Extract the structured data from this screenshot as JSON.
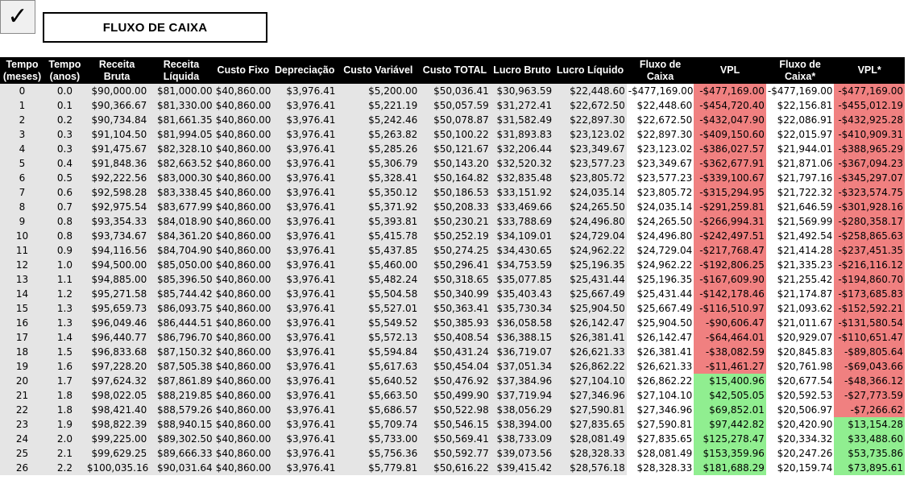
{
  "header": {
    "check_symbol": "✓",
    "title": "FLUXO DE CAIXA"
  },
  "colors": {
    "header_bg": "#000000",
    "body_bg": "#e5e5e5",
    "negative": "#f08080",
    "positive": "#90ee90"
  },
  "table": {
    "columns": [
      "Tempo (meses)",
      "Tempo (anos)",
      "Receita Bruta",
      "Receita Líquida",
      "Custo Fixo",
      "Depreciação",
      "Custo Variável",
      "Custo TOTAL",
      "Lucro Bruto",
      "Lucro Líquido",
      "Fluxo de Caixa",
      "VPL",
      "Fluxo de Caixa*",
      "VPL*"
    ],
    "rows": [
      [
        "0",
        "0.0",
        "$90,000.00",
        "$81,000.00",
        "$40,860.00",
        "$3,976.41",
        "$5,200.00",
        "$50,036.41",
        "$30,963.59",
        "$22,448.60",
        "-$477,169.00",
        "-$477,169.00",
        "-$477,169.00",
        "-$477,169.00"
      ],
      [
        "1",
        "0.1",
        "$90,366.67",
        "$81,330.00",
        "$40,860.00",
        "$3,976.41",
        "$5,221.19",
        "$50,057.59",
        "$31,272.41",
        "$22,672.50",
        "$22,448.60",
        "-$454,720.40",
        "$22,156.81",
        "-$455,012.19"
      ],
      [
        "2",
        "0.2",
        "$90,734.84",
        "$81,661.35",
        "$40,860.00",
        "$3,976.41",
        "$5,242.46",
        "$50,078.87",
        "$31,582.49",
        "$22,897.30",
        "$22,672.50",
        "-$432,047.90",
        "$22,086.91",
        "-$432,925.28"
      ],
      [
        "3",
        "0.3",
        "$91,104.50",
        "$81,994.05",
        "$40,860.00",
        "$3,976.41",
        "$5,263.82",
        "$50,100.22",
        "$31,893.83",
        "$23,123.02",
        "$22,897.30",
        "-$409,150.60",
        "$22,015.97",
        "-$410,909.31"
      ],
      [
        "4",
        "0.3",
        "$91,475.67",
        "$82,328.10",
        "$40,860.00",
        "$3,976.41",
        "$5,285.26",
        "$50,121.67",
        "$32,206.44",
        "$23,349.67",
        "$23,123.02",
        "-$386,027.57",
        "$21,944.01",
        "-$388,965.29"
      ],
      [
        "5",
        "0.4",
        "$91,848.36",
        "$82,663.52",
        "$40,860.00",
        "$3,976.41",
        "$5,306.79",
        "$50,143.20",
        "$32,520.32",
        "$23,577.23",
        "$23,349.67",
        "-$362,677.91",
        "$21,871.06",
        "-$367,094.23"
      ],
      [
        "6",
        "0.5",
        "$92,222.56",
        "$83,000.30",
        "$40,860.00",
        "$3,976.41",
        "$5,328.41",
        "$50,164.82",
        "$32,835.48",
        "$23,805.72",
        "$23,577.23",
        "-$339,100.67",
        "$21,797.16",
        "-$345,297.07"
      ],
      [
        "7",
        "0.6",
        "$92,598.28",
        "$83,338.45",
        "$40,860.00",
        "$3,976.41",
        "$5,350.12",
        "$50,186.53",
        "$33,151.92",
        "$24,035.14",
        "$23,805.72",
        "-$315,294.95",
        "$21,722.32",
        "-$323,574.75"
      ],
      [
        "8",
        "0.7",
        "$92,975.54",
        "$83,677.99",
        "$40,860.00",
        "$3,976.41",
        "$5,371.92",
        "$50,208.33",
        "$33,469.66",
        "$24,265.50",
        "$24,035.14",
        "-$291,259.81",
        "$21,646.59",
        "-$301,928.16"
      ],
      [
        "9",
        "0.8",
        "$93,354.33",
        "$84,018.90",
        "$40,860.00",
        "$3,976.41",
        "$5,393.81",
        "$50,230.21",
        "$33,788.69",
        "$24,496.80",
        "$24,265.50",
        "-$266,994.31",
        "$21,569.99",
        "-$280,358.17"
      ],
      [
        "10",
        "0.8",
        "$93,734.67",
        "$84,361.20",
        "$40,860.00",
        "$3,976.41",
        "$5,415.78",
        "$50,252.19",
        "$34,109.01",
        "$24,729.04",
        "$24,496.80",
        "-$242,497.51",
        "$21,492.54",
        "-$258,865.63"
      ],
      [
        "11",
        "0.9",
        "$94,116.56",
        "$84,704.90",
        "$40,860.00",
        "$3,976.41",
        "$5,437.85",
        "$50,274.25",
        "$34,430.65",
        "$24,962.22",
        "$24,729.04",
        "-$217,768.47",
        "$21,414.28",
        "-$237,451.35"
      ],
      [
        "12",
        "1.0",
        "$94,500.00",
        "$85,050.00",
        "$40,860.00",
        "$3,976.41",
        "$5,460.00",
        "$50,296.41",
        "$34,753.59",
        "$25,196.35",
        "$24,962.22",
        "-$192,806.25",
        "$21,335.23",
        "-$216,116.12"
      ],
      [
        "13",
        "1.1",
        "$94,885.00",
        "$85,396.50",
        "$40,860.00",
        "$3,976.41",
        "$5,482.24",
        "$50,318.65",
        "$35,077.85",
        "$25,431.44",
        "$25,196.35",
        "-$167,609.90",
        "$21,255.42",
        "-$194,860.70"
      ],
      [
        "14",
        "1.2",
        "$95,271.58",
        "$85,744.42",
        "$40,860.00",
        "$3,976.41",
        "$5,504.58",
        "$50,340.99",
        "$35,403.43",
        "$25,667.49",
        "$25,431.44",
        "-$142,178.46",
        "$21,174.87",
        "-$173,685.83"
      ],
      [
        "15",
        "1.3",
        "$95,659.73",
        "$86,093.75",
        "$40,860.00",
        "$3,976.41",
        "$5,527.01",
        "$50,363.41",
        "$35,730.34",
        "$25,904.50",
        "$25,667.49",
        "-$116,510.97",
        "$21,093.62",
        "-$152,592.21"
      ],
      [
        "16",
        "1.3",
        "$96,049.46",
        "$86,444.51",
        "$40,860.00",
        "$3,976.41",
        "$5,549.52",
        "$50,385.93",
        "$36,058.58",
        "$26,142.47",
        "$25,904.50",
        "-$90,606.47",
        "$21,011.67",
        "-$131,580.54"
      ],
      [
        "17",
        "1.4",
        "$96,440.77",
        "$86,796.70",
        "$40,860.00",
        "$3,976.41",
        "$5,572.13",
        "$50,408.54",
        "$36,388.15",
        "$26,381.41",
        "$26,142.47",
        "-$64,464.01",
        "$20,929.07",
        "-$110,651.47"
      ],
      [
        "18",
        "1.5",
        "$96,833.68",
        "$87,150.32",
        "$40,860.00",
        "$3,976.41",
        "$5,594.84",
        "$50,431.24",
        "$36,719.07",
        "$26,621.33",
        "$26,381.41",
        "-$38,082.59",
        "$20,845.83",
        "-$89,805.64"
      ],
      [
        "19",
        "1.6",
        "$97,228.20",
        "$87,505.38",
        "$40,860.00",
        "$3,976.41",
        "$5,617.63",
        "$50,454.04",
        "$37,051.34",
        "$26,862.22",
        "$26,621.33",
        "-$11,461.27",
        "$20,761.98",
        "-$69,043.66"
      ],
      [
        "20",
        "1.7",
        "$97,624.32",
        "$87,861.89",
        "$40,860.00",
        "$3,976.41",
        "$5,640.52",
        "$50,476.92",
        "$37,384.96",
        "$27,104.10",
        "$26,862.22",
        "$15,400.96",
        "$20,677.54",
        "-$48,366.12"
      ],
      [
        "21",
        "1.8",
        "$98,022.05",
        "$88,219.85",
        "$40,860.00",
        "$3,976.41",
        "$5,663.50",
        "$50,499.90",
        "$37,719.94",
        "$27,346.96",
        "$27,104.10",
        "$42,505.05",
        "$20,592.53",
        "-$27,773.59"
      ],
      [
        "22",
        "1.8",
        "$98,421.40",
        "$88,579.26",
        "$40,860.00",
        "$3,976.41",
        "$5,686.57",
        "$50,522.98",
        "$38,056.29",
        "$27,590.81",
        "$27,346.96",
        "$69,852.01",
        "$20,506.97",
        "-$7,266.62"
      ],
      [
        "23",
        "1.9",
        "$98,822.39",
        "$88,940.15",
        "$40,860.00",
        "$3,976.41",
        "$5,709.74",
        "$50,546.15",
        "$38,394.00",
        "$27,835.65",
        "$27,590.81",
        "$97,442.82",
        "$20,420.90",
        "$13,154.28"
      ],
      [
        "24",
        "2.0",
        "$99,225.00",
        "$89,302.50",
        "$40,860.00",
        "$3,976.41",
        "$5,733.00",
        "$50,569.41",
        "$38,733.09",
        "$28,081.49",
        "$27,835.65",
        "$125,278.47",
        "$20,334.32",
        "$33,488.60"
      ],
      [
        "25",
        "2.1",
        "$99,629.25",
        "$89,666.33",
        "$40,860.00",
        "$3,976.41",
        "$5,756.36",
        "$50,592.77",
        "$39,073.56",
        "$28,328.33",
        "$28,081.49",
        "$153,359.96",
        "$20,247.26",
        "$53,735.86"
      ],
      [
        "26",
        "2.2",
        "$100,035.16",
        "$90,031.64",
        "$40,860.00",
        "$3,976.41",
        "$5,779.81",
        "$50,616.22",
        "$39,415.42",
        "$28,576.18",
        "$28,328.33",
        "$181,688.29",
        "$20,159.74",
        "$73,895.61"
      ]
    ]
  }
}
